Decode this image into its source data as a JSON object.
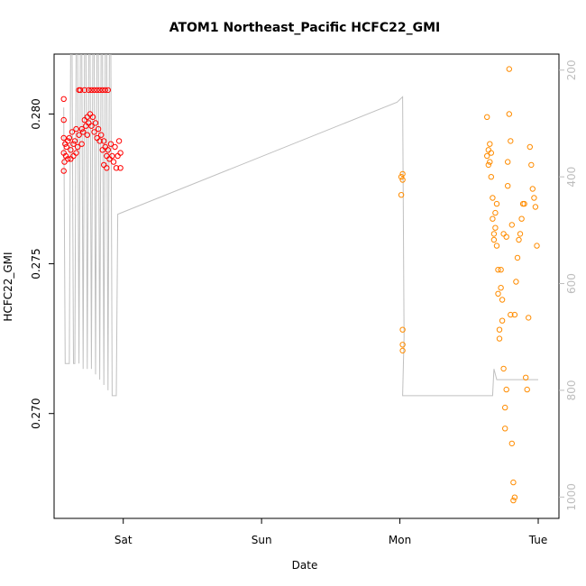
{
  "chart_data": {
    "type": "scatter",
    "title": "ATOM1 Northeast_Pacific HCFC22_GMI",
    "xlabel": "Date",
    "ylabel": "HCFC22_GMI",
    "x_unit": "day",
    "x_tick_labels": [
      {
        "x": 2,
        "label": "Sat"
      },
      {
        "x": 3,
        "label": "Sun"
      },
      {
        "x": 4,
        "label": "Mon"
      },
      {
        "x": 5,
        "label": "Tue"
      }
    ],
    "y_ticks": [
      0.27,
      0.275,
      0.28
    ],
    "y_tick_labels": [
      "0.270",
      "0.275",
      "0.280"
    ],
    "xlim": [
      1.5,
      5.15
    ],
    "ylim": [
      0.2665,
      0.282
    ],
    "right_axis": {
      "ticks": [
        200,
        400,
        600,
        800,
        1000
      ],
      "ylim": [
        1040,
        170
      ],
      "color": "#bdbdbd"
    },
    "colors": {
      "series1": "#ff0000",
      "series2": "#ff8c00",
      "pressure_line": "#c0c0c0"
    },
    "series": [
      {
        "color": "#ff0000",
        "points": [
          [
            1.57,
            0.2805
          ],
          [
            1.57,
            0.2798
          ],
          [
            1.57,
            0.2792
          ],
          [
            1.57,
            0.2787
          ],
          [
            1.57,
            0.2781
          ],
          [
            1.575,
            0.2784
          ],
          [
            1.58,
            0.279
          ],
          [
            1.585,
            0.2786
          ],
          [
            1.59,
            0.2789
          ],
          [
            1.6,
            0.2785
          ],
          [
            1.6,
            0.2791
          ],
          [
            1.61,
            0.2792
          ],
          [
            1.62,
            0.2788
          ],
          [
            1.62,
            0.2785
          ],
          [
            1.63,
            0.2794
          ],
          [
            1.64,
            0.279
          ],
          [
            1.64,
            0.2786
          ],
          [
            1.65,
            0.2791
          ],
          [
            1.66,
            0.2787
          ],
          [
            1.66,
            0.2795
          ],
          [
            1.67,
            0.2789
          ],
          [
            1.68,
            0.2808
          ],
          [
            1.68,
            0.2793
          ],
          [
            1.69,
            0.2808
          ],
          [
            1.7,
            0.2795
          ],
          [
            1.7,
            0.279
          ],
          [
            1.71,
            0.2794
          ],
          [
            1.72,
            0.2798
          ],
          [
            1.72,
            0.2808
          ],
          [
            1.73,
            0.2796
          ],
          [
            1.74,
            0.2799
          ],
          [
            1.74,
            0.2793
          ],
          [
            1.75,
            0.2808
          ],
          [
            1.75,
            0.2797
          ],
          [
            1.76,
            0.28
          ],
          [
            1.77,
            0.2796
          ],
          [
            1.77,
            0.2808
          ],
          [
            1.78,
            0.2799
          ],
          [
            1.79,
            0.2794
          ],
          [
            1.79,
            0.2808
          ],
          [
            1.8,
            0.2797
          ],
          [
            1.81,
            0.2792
          ],
          [
            1.81,
            0.2808
          ],
          [
            1.82,
            0.2795
          ],
          [
            1.83,
            0.2791
          ],
          [
            1.83,
            0.2808
          ],
          [
            1.84,
            0.2793
          ],
          [
            1.85,
            0.2788
          ],
          [
            1.85,
            0.2808
          ],
          [
            1.86,
            0.2791
          ],
          [
            1.86,
            0.2783
          ],
          [
            1.87,
            0.2789
          ],
          [
            1.87,
            0.2808
          ],
          [
            1.88,
            0.2786
          ],
          [
            1.88,
            0.2782
          ],
          [
            1.89,
            0.2788
          ],
          [
            1.89,
            0.2808
          ],
          [
            1.9,
            0.2785
          ],
          [
            1.91,
            0.279
          ],
          [
            1.92,
            0.2786
          ],
          [
            1.93,
            0.2784
          ],
          [
            1.94,
            0.2789
          ],
          [
            1.95,
            0.2782
          ],
          [
            1.96,
            0.2786
          ],
          [
            1.97,
            0.2791
          ],
          [
            1.98,
            0.2787
          ],
          [
            1.98,
            0.2782
          ]
        ]
      },
      {
        "color": "#ff8c00",
        "points": [
          [
            4.01,
            0.2779
          ],
          [
            4.01,
            0.2773
          ],
          [
            4.02,
            0.278
          ],
          [
            4.02,
            0.2778
          ],
          [
            4.02,
            0.2728
          ],
          [
            4.02,
            0.2723
          ],
          [
            4.02,
            0.2721
          ],
          [
            4.63,
            0.2799
          ],
          [
            4.63,
            0.2786
          ],
          [
            4.64,
            0.2788
          ],
          [
            4.64,
            0.2783
          ],
          [
            4.65,
            0.2784
          ],
          [
            4.65,
            0.279
          ],
          [
            4.66,
            0.2787
          ],
          [
            4.66,
            0.2779
          ],
          [
            4.67,
            0.2772
          ],
          [
            4.67,
            0.2765
          ],
          [
            4.68,
            0.276
          ],
          [
            4.68,
            0.2758
          ],
          [
            4.69,
            0.2762
          ],
          [
            4.69,
            0.2767
          ],
          [
            4.7,
            0.277
          ],
          [
            4.7,
            0.2756
          ],
          [
            4.71,
            0.2748
          ],
          [
            4.71,
            0.274
          ],
          [
            4.72,
            0.2728
          ],
          [
            4.72,
            0.2725
          ],
          [
            4.73,
            0.2748
          ],
          [
            4.73,
            0.2742
          ],
          [
            4.74,
            0.2738
          ],
          [
            4.74,
            0.2731
          ],
          [
            4.75,
            0.276
          ],
          [
            4.75,
            0.2715
          ],
          [
            4.76,
            0.2702
          ],
          [
            4.76,
            0.2695
          ],
          [
            4.77,
            0.2708
          ],
          [
            4.77,
            0.2759
          ],
          [
            4.78,
            0.2776
          ],
          [
            4.78,
            0.2784
          ],
          [
            4.79,
            0.2815
          ],
          [
            4.79,
            0.28
          ],
          [
            4.8,
            0.2791
          ],
          [
            4.8,
            0.2733
          ],
          [
            4.81,
            0.2763
          ],
          [
            4.81,
            0.269
          ],
          [
            4.82,
            0.2677
          ],
          [
            4.82,
            0.2671
          ],
          [
            4.83,
            0.2672
          ],
          [
            4.83,
            0.2733
          ],
          [
            4.84,
            0.2744
          ],
          [
            4.85,
            0.2752
          ],
          [
            4.86,
            0.2758
          ],
          [
            4.87,
            0.276
          ],
          [
            4.88,
            0.2765
          ],
          [
            4.89,
            0.277
          ],
          [
            4.9,
            0.277
          ],
          [
            4.91,
            0.2712
          ],
          [
            4.92,
            0.2708
          ],
          [
            4.93,
            0.2732
          ],
          [
            4.94,
            0.2789
          ],
          [
            4.95,
            0.2783
          ],
          [
            4.96,
            0.2775
          ],
          [
            4.97,
            0.2772
          ],
          [
            4.98,
            0.2769
          ],
          [
            4.99,
            0.2756
          ]
        ]
      }
    ],
    "pressure_line": {
      "color": "#c0c0c0",
      "points": [
        [
          1.57,
          270
        ],
        [
          1.58,
          750
        ],
        [
          1.61,
          750
        ],
        [
          1.62,
          150
        ],
        [
          1.63,
          150
        ],
        [
          1.64,
          750
        ],
        [
          1.65,
          750
        ],
        [
          1.66,
          150
        ],
        [
          1.67,
          150
        ],
        [
          1.68,
          750
        ],
        [
          1.69,
          150
        ],
        [
          1.7,
          150
        ],
        [
          1.71,
          760
        ],
        [
          1.72,
          150
        ],
        [
          1.73,
          150
        ],
        [
          1.74,
          760
        ],
        [
          1.75,
          150
        ],
        [
          1.76,
          150
        ],
        [
          1.77,
          760
        ],
        [
          1.78,
          150
        ],
        [
          1.79,
          150
        ],
        [
          1.8,
          770
        ],
        [
          1.81,
          150
        ],
        [
          1.82,
          150
        ],
        [
          1.83,
          780
        ],
        [
          1.84,
          150
        ],
        [
          1.85,
          150
        ],
        [
          1.86,
          790
        ],
        [
          1.87,
          150
        ],
        [
          1.88,
          150
        ],
        [
          1.89,
          800
        ],
        [
          1.9,
          150
        ],
        [
          1.91,
          150
        ],
        [
          1.92,
          810
        ],
        [
          1.95,
          810
        ],
        [
          1.96,
          470
        ],
        [
          3.98,
          260
        ],
        [
          4.02,
          250
        ],
        [
          4.03,
          700
        ],
        [
          4.02,
          810
        ],
        [
          4.6,
          810
        ],
        [
          4.67,
          810
        ],
        [
          4.68,
          760
        ],
        [
          4.7,
          780
        ],
        [
          5.0,
          780
        ]
      ]
    }
  }
}
